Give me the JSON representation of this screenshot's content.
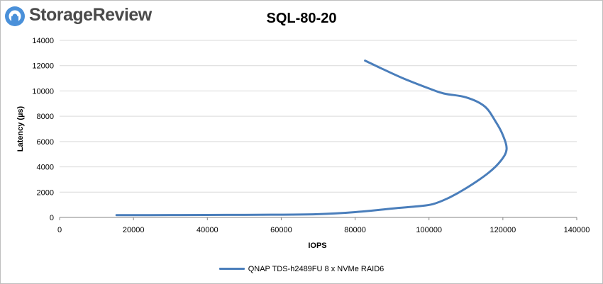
{
  "brand": {
    "name": "StorageReview",
    "accent": "#4a90d9",
    "text_color": "#4a4a4a",
    "logo_icon": "storagereview-logo-icon"
  },
  "chart_data": {
    "type": "line",
    "title": "SQL-80-20",
    "xlabel": "IOPS",
    "ylabel": "Latency (µs)",
    "xlim": [
      0,
      140000
    ],
    "ylim": [
      0,
      14000
    ],
    "xticks": [
      "0",
      "20000",
      "40000",
      "60000",
      "80000",
      "100000",
      "120000",
      "140000"
    ],
    "yticks": [
      "0",
      "2000",
      "4000",
      "6000",
      "8000",
      "10000",
      "12000",
      "14000"
    ],
    "grid": {
      "horizontal": true,
      "vertical": false
    },
    "legend_position": "bottom",
    "series": [
      {
        "name": "QNAP TDS-h2489FU 8 x NVMe RAID6",
        "color": "#4a7ebb",
        "x": [
          15400,
          30000,
          45000,
          60000,
          70000,
          80000,
          90000,
          97000,
          101000,
          105000,
          110000,
          116000,
          119500,
          121000,
          120000,
          118000,
          115000,
          110000,
          104000,
          100000,
          93000,
          87000,
          82700
        ],
        "y": [
          180,
          190,
          200,
          220,
          260,
          420,
          700,
          880,
          1050,
          1500,
          2300,
          3500,
          4500,
          5400,
          6500,
          7600,
          8800,
          9500,
          9800,
          10200,
          11000,
          11800,
          12400
        ]
      }
    ]
  }
}
